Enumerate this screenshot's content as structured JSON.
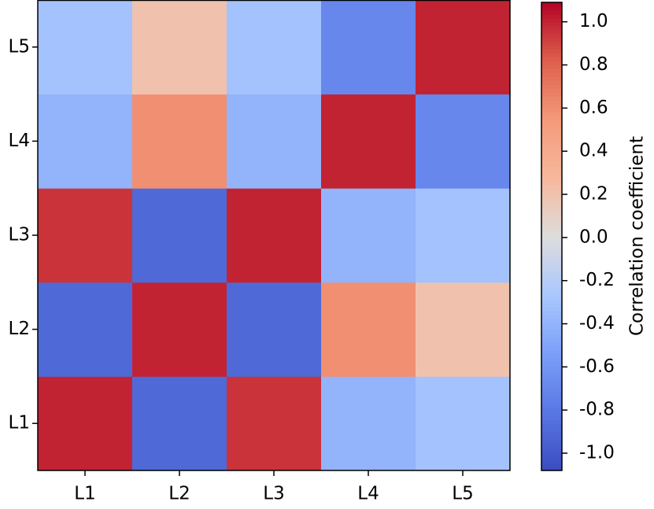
{
  "chart_data": {
    "type": "heatmap",
    "x": [
      "L1",
      "L2",
      "L3",
      "L4",
      "L5"
    ],
    "y": [
      "L1",
      "L2",
      "L3",
      "L4",
      "L5"
    ],
    "values": [
      [
        1.0,
        -0.9,
        0.95,
        -0.4,
        -0.3
      ],
      [
        -0.9,
        1.0,
        -0.9,
        0.6,
        0.2
      ],
      [
        0.95,
        -0.9,
        1.0,
        -0.4,
        -0.3
      ],
      [
        -0.4,
        0.6,
        -0.4,
        1.0,
        -0.7
      ],
      [
        -0.3,
        0.2,
        -0.3,
        -0.7,
        1.0
      ]
    ],
    "colormap": "coolwarm",
    "clim": [
      -1.08,
      1.09
    ],
    "cticks": [
      {
        "value": -1.0,
        "label": "-1.0"
      },
      {
        "value": -0.8,
        "label": "-0.8"
      },
      {
        "value": -0.6,
        "label": "-0.6"
      },
      {
        "value": -0.4,
        "label": "-0.4"
      },
      {
        "value": -0.2,
        "label": "-0.2"
      },
      {
        "value": 0.0,
        "label": "0.0"
      },
      {
        "value": 0.2,
        "label": "0.2"
      },
      {
        "value": 0.4,
        "label": "0.4"
      },
      {
        "value": 0.6,
        "label": "0.6"
      },
      {
        "value": 0.8,
        "label": "0.8"
      },
      {
        "value": 1.0,
        "label": "1.0"
      }
    ],
    "colorbar_label": "Correlation coefficient"
  }
}
